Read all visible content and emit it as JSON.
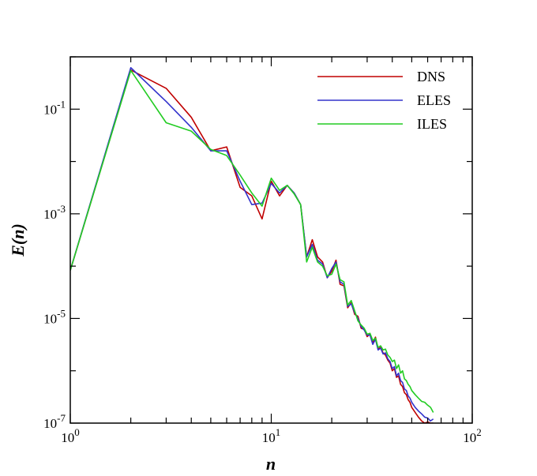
{
  "chart_data": {
    "type": "line",
    "xlabel": "n",
    "ylabel": "E(n)",
    "xscale": "log",
    "yscale": "log",
    "xlim": [
      1,
      100
    ],
    "ylim": [
      1e-07,
      1
    ],
    "legend_position": "top-right",
    "x_ticks": [
      {
        "value": 1,
        "base": "10",
        "exp": "0"
      },
      {
        "value": 10,
        "base": "10",
        "exp": "1"
      },
      {
        "value": 100,
        "base": "10",
        "exp": "2"
      }
    ],
    "y_ticks": [
      {
        "value": 1e-07,
        "base": "10",
        "exp": "-7"
      },
      {
        "value": 1e-05,
        "base": "10",
        "exp": "-5"
      },
      {
        "value": 0.001,
        "base": "10",
        "exp": "-3"
      },
      {
        "value": 0.1,
        "base": "10",
        "exp": "-1"
      }
    ],
    "series": [
      {
        "name": "DNS",
        "color": "#c00000",
        "points": [
          [
            1,
            8.3e-05
          ],
          [
            2,
            0.56
          ],
          [
            3,
            0.25
          ],
          [
            4,
            0.07
          ],
          [
            5,
            0.016
          ],
          [
            6,
            0.019
          ],
          [
            7,
            0.0032
          ],
          [
            8,
            0.0022
          ],
          [
            9,
            0.0008
          ],
          [
            10,
            0.0042
          ],
          [
            11,
            0.0022
          ],
          [
            12,
            0.0035
          ],
          [
            13,
            0.0025
          ],
          [
            14,
            0.0015
          ],
          [
            15,
            0.00015
          ],
          [
            16,
            0.00032
          ],
          [
            17,
            0.00015
          ],
          [
            18,
            0.00012
          ],
          [
            19,
            6e-05
          ],
          [
            20,
            8e-05
          ],
          [
            21,
            0.00013
          ],
          [
            22,
            4.5e-05
          ],
          [
            23,
            4.2e-05
          ],
          [
            24,
            1.6e-05
          ],
          [
            25,
            2e-05
          ],
          [
            26,
            1.2e-05
          ],
          [
            27,
            1.1e-05
          ],
          [
            28,
            6.5e-06
          ],
          [
            29,
            6.2e-06
          ],
          [
            30,
            4.5e-06
          ],
          [
            31,
            5e-06
          ],
          [
            32,
            3.5e-06
          ],
          [
            33,
            4.4e-06
          ],
          [
            34,
            2.6e-06
          ],
          [
            35,
            2.8e-06
          ],
          [
            36,
            2.2e-06
          ],
          [
            37,
            2e-06
          ],
          [
            38,
            1.6e-06
          ],
          [
            39,
            1.4e-06
          ],
          [
            40,
            1e-06
          ],
          [
            41,
            1.1e-06
          ],
          [
            42,
            7.5e-07
          ],
          [
            43,
            8e-07
          ],
          [
            44,
            5.5e-07
          ],
          [
            45,
            5e-07
          ],
          [
            46,
            3.8e-07
          ],
          [
            47,
            3.5e-07
          ],
          [
            48,
            2.8e-07
          ],
          [
            49,
            2.5e-07
          ],
          [
            50,
            2e-07
          ],
          [
            52,
            1.6e-07
          ],
          [
            54,
            1.3e-07
          ],
          [
            56,
            1.1e-07
          ],
          [
            58,
            1e-07
          ],
          [
            60,
            1.05e-07
          ],
          [
            62,
            1e-07
          ],
          [
            64,
            1e-07
          ]
        ]
      },
      {
        "name": "ELES",
        "color": "#3333cc",
        "points": [
          [
            1,
            8.3e-05
          ],
          [
            2,
            0.62
          ],
          [
            3,
            0.14
          ],
          [
            4,
            0.045
          ],
          [
            5,
            0.016
          ],
          [
            6,
            0.016
          ],
          [
            7,
            0.0042
          ],
          [
            8,
            0.0015
          ],
          [
            9,
            0.0016
          ],
          [
            10,
            0.0038
          ],
          [
            11,
            0.0025
          ],
          [
            12,
            0.0035
          ],
          [
            13,
            0.0025
          ],
          [
            14,
            0.0015
          ],
          [
            15,
            0.00015
          ],
          [
            16,
            0.00026
          ],
          [
            17,
            0.00013
          ],
          [
            18,
            0.00011
          ],
          [
            19,
            6e-05
          ],
          [
            20,
            9e-05
          ],
          [
            21,
            0.00012
          ],
          [
            22,
            5e-05
          ],
          [
            23,
            4.5e-05
          ],
          [
            24,
            1.7e-05
          ],
          [
            25,
            1.9e-05
          ],
          [
            26,
            1.3e-05
          ],
          [
            27,
            1e-05
          ],
          [
            28,
            7e-06
          ],
          [
            29,
            6e-06
          ],
          [
            30,
            4.8e-06
          ],
          [
            31,
            4.8e-06
          ],
          [
            32,
            3.2e-06
          ],
          [
            33,
            4e-06
          ],
          [
            34,
            2.5e-06
          ],
          [
            35,
            2.7e-06
          ],
          [
            36,
            2.1e-06
          ],
          [
            37,
            2.2e-06
          ],
          [
            38,
            1.7e-06
          ],
          [
            39,
            1.5e-06
          ],
          [
            40,
            1.1e-06
          ],
          [
            41,
            1.2e-06
          ],
          [
            42,
            8e-07
          ],
          [
            43,
            9e-07
          ],
          [
            44,
            6.5e-07
          ],
          [
            45,
            6e-07
          ],
          [
            46,
            4.5e-07
          ],
          [
            47,
            4.2e-07
          ],
          [
            48,
            3.3e-07
          ],
          [
            49,
            3e-07
          ],
          [
            50,
            2.5e-07
          ],
          [
            52,
            2e-07
          ],
          [
            54,
            1.7e-07
          ],
          [
            56,
            1.5e-07
          ],
          [
            58,
            1.3e-07
          ],
          [
            60,
            1.25e-07
          ],
          [
            62,
            1.1e-07
          ],
          [
            64,
            1.2e-07
          ]
        ]
      },
      {
        "name": "ILES",
        "color": "#22cc22",
        "points": [
          [
            1,
            8.3e-05
          ],
          [
            2,
            0.55
          ],
          [
            3,
            0.055
          ],
          [
            4,
            0.038
          ],
          [
            5,
            0.017
          ],
          [
            6,
            0.013
          ],
          [
            7,
            0.0055
          ],
          [
            8,
            0.0025
          ],
          [
            9,
            0.0014
          ],
          [
            10,
            0.0048
          ],
          [
            11,
            0.0028
          ],
          [
            12,
            0.0035
          ],
          [
            13,
            0.0024
          ],
          [
            14,
            0.0015
          ],
          [
            15,
            0.00012
          ],
          [
            16,
            0.00023
          ],
          [
            17,
            0.00012
          ],
          [
            18,
            0.0001
          ],
          [
            19,
            6.5e-05
          ],
          [
            20,
            7e-05
          ],
          [
            21,
            0.00011
          ],
          [
            22,
            5.5e-05
          ],
          [
            23,
            5e-05
          ],
          [
            24,
            1.8e-05
          ],
          [
            25,
            2.2e-05
          ],
          [
            26,
            1.4e-05
          ],
          [
            27,
            9e-06
          ],
          [
            28,
            7.5e-06
          ],
          [
            29,
            6.5e-06
          ],
          [
            30,
            5e-06
          ],
          [
            31,
            5.2e-06
          ],
          [
            32,
            3.8e-06
          ],
          [
            33,
            4.2e-06
          ],
          [
            34,
            2.8e-06
          ],
          [
            35,
            3e-06
          ],
          [
            36,
            2.5e-06
          ],
          [
            37,
            2.6e-06
          ],
          [
            38,
            2e-06
          ],
          [
            39,
            1.8e-06
          ],
          [
            40,
            1.5e-06
          ],
          [
            41,
            1.6e-06
          ],
          [
            42,
            1.1e-06
          ],
          [
            43,
            1.3e-06
          ],
          [
            44,
            9e-07
          ],
          [
            45,
            1e-06
          ],
          [
            46,
            7e-07
          ],
          [
            47,
            6.5e-07
          ],
          [
            48,
            5.5e-07
          ],
          [
            49,
            5e-07
          ],
          [
            50,
            4.2e-07
          ],
          [
            52,
            3.5e-07
          ],
          [
            54,
            3e-07
          ],
          [
            56,
            2.6e-07
          ],
          [
            58,
            2.5e-07
          ],
          [
            60,
            2.2e-07
          ],
          [
            62,
            2e-07
          ],
          [
            64,
            1.6e-07
          ]
        ]
      }
    ]
  }
}
